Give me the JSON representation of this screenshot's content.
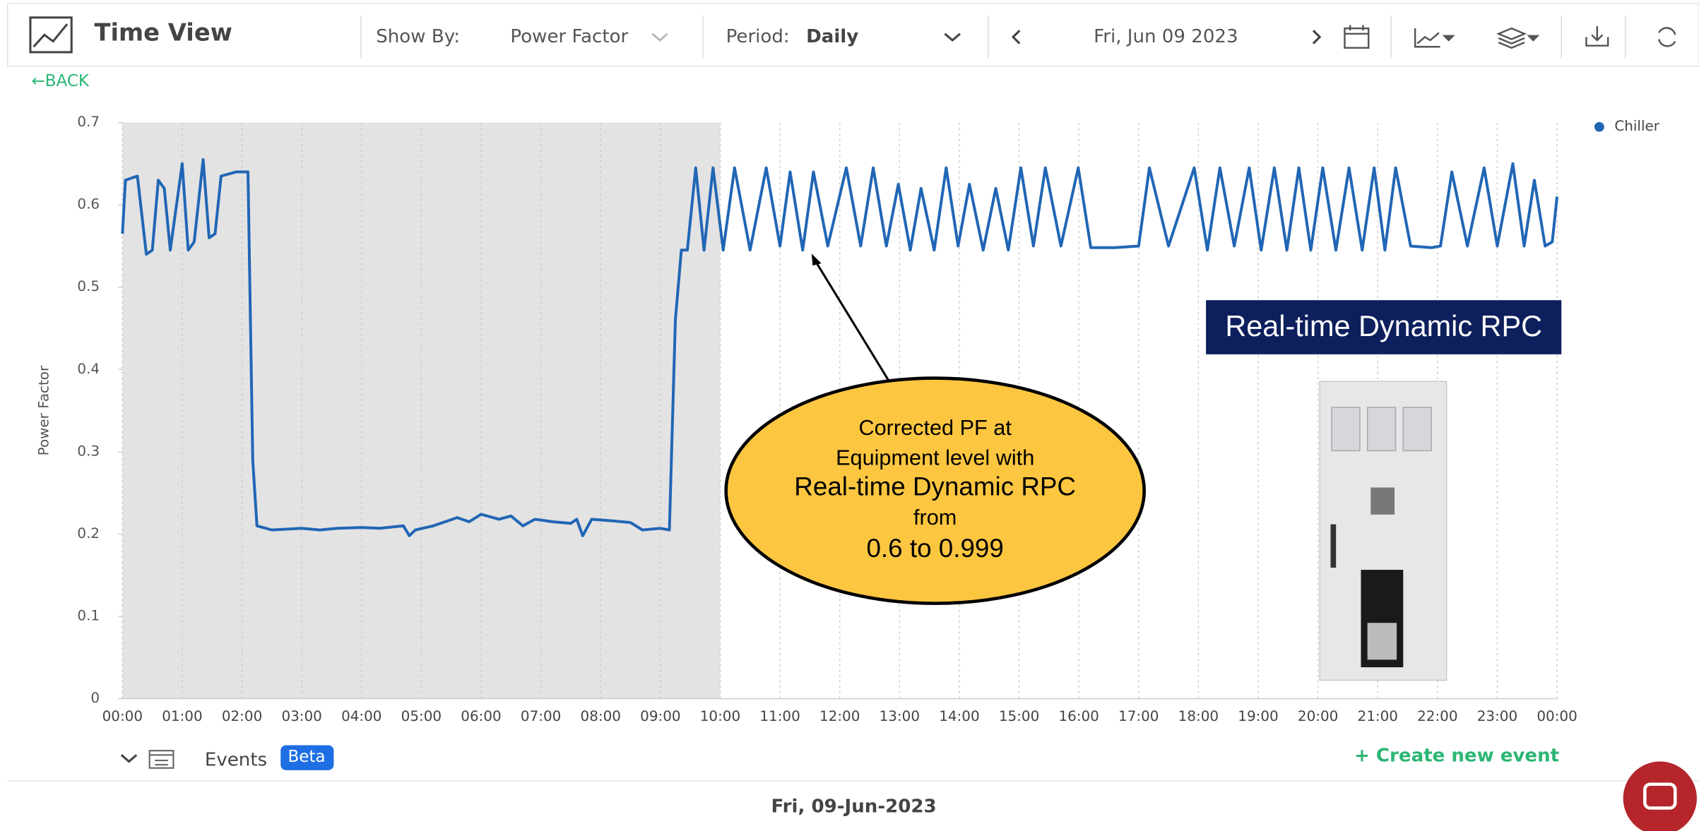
{
  "header": {
    "title": "Time View",
    "show_by_label": "Show By:",
    "show_by_value": "Power Factor",
    "period_label": "Period:",
    "period_value": "Daily",
    "date": "Fri, Jun 09 2023"
  },
  "back": "←BACK",
  "events": {
    "label": "Events",
    "badge": "Beta",
    "create": "+ Create new event"
  },
  "footer": {
    "date": "Fri, 09-Jun-2023"
  },
  "callout": {
    "lines": [
      "Corrected PF at",
      "Equipment level with",
      "Real-time Dynamic RPC",
      "from",
      "0.6 to 0.999"
    ]
  },
  "product_label": "Real-time Dynamic RPC",
  "chart_data": {
    "type": "line",
    "y_label": "Power Factor",
    "grid": true,
    "legend": "top-right",
    "highlight_xrange": [
      0,
      10
    ],
    "xlim": [
      0,
      24
    ],
    "ylim": [
      0,
      0.7
    ],
    "yticks": [
      0,
      0.1,
      0.2,
      0.3,
      0.4,
      0.5,
      0.6,
      0.7
    ],
    "xticks": [
      {
        "value": 0,
        "label": "00:00"
      },
      {
        "value": 1,
        "label": "01:00"
      },
      {
        "value": 2,
        "label": "02:00"
      },
      {
        "value": 3,
        "label": "03:00"
      },
      {
        "value": 4,
        "label": "04:00"
      },
      {
        "value": 5,
        "label": "05:00"
      },
      {
        "value": 6,
        "label": "06:00"
      },
      {
        "value": 7,
        "label": "07:00"
      },
      {
        "value": 8,
        "label": "08:00"
      },
      {
        "value": 9,
        "label": "09:00"
      },
      {
        "value": 10,
        "label": "10:00"
      },
      {
        "value": 11,
        "label": "11:00"
      },
      {
        "value": 12,
        "label": "12:00"
      },
      {
        "value": 13,
        "label": "13:00"
      },
      {
        "value": 14,
        "label": "14:00"
      },
      {
        "value": 15,
        "label": "15:00"
      },
      {
        "value": 16,
        "label": "16:00"
      },
      {
        "value": 17,
        "label": "17:00"
      },
      {
        "value": 18,
        "label": "18:00"
      },
      {
        "value": 19,
        "label": "19:00"
      },
      {
        "value": 20,
        "label": "20:00"
      },
      {
        "value": 21,
        "label": "21:00"
      },
      {
        "value": 22,
        "label": "22:00"
      },
      {
        "value": 23,
        "label": "23:00"
      },
      {
        "value": 24,
        "label": "00:00"
      }
    ],
    "x": [
      0,
      0.05,
      0.25,
      0.4,
      0.5,
      0.6,
      0.7,
      0.8,
      1.0,
      1.1,
      1.2,
      1.35,
      1.45,
      1.55,
      1.65,
      1.9,
      2.1,
      2.18,
      2.25,
      2.5,
      3.0,
      3.3,
      3.6,
      4.0,
      4.3,
      4.7,
      4.8,
      4.9,
      5.2,
      5.6,
      5.8,
      6.0,
      6.3,
      6.5,
      6.7,
      6.9,
      7.2,
      7.5,
      7.6,
      7.7,
      7.85,
      8.2,
      8.5,
      8.7,
      9.0,
      9.15,
      9.25,
      9.35,
      9.45,
      9.59,
      9.73,
      9.88,
      10.05,
      10.24,
      10.5,
      10.77,
      11.0,
      11.17,
      11.38,
      11.56,
      11.8,
      12.11,
      12.35,
      12.56,
      12.78,
      12.98,
      13.18,
      13.36,
      13.58,
      13.78,
      13.98,
      14.17,
      14.4,
      14.61,
      14.82,
      15.03,
      15.24,
      15.44,
      15.7,
      15.99,
      16.2,
      16.6,
      17.0,
      17.18,
      17.5,
      17.93,
      18.15,
      18.36,
      18.6,
      18.85,
      19.05,
      19.27,
      19.48,
      19.68,
      19.88,
      20.08,
      20.3,
      20.52,
      20.74,
      20.94,
      21.12,
      21.3,
      21.55,
      21.9,
      22.05,
      22.24,
      22.5,
      22.78,
      23.0,
      23.26,
      23.45,
      23.62,
      23.8,
      23.92,
      24
    ],
    "series": [
      {
        "name": "Chiller",
        "color": "#2166b5",
        "values": [
          0.565,
          0.63,
          0.635,
          0.54,
          0.545,
          0.63,
          0.62,
          0.545,
          0.65,
          0.545,
          0.555,
          0.655,
          0.56,
          0.565,
          0.635,
          0.64,
          0.64,
          0.29,
          0.21,
          0.205,
          0.207,
          0.205,
          0.207,
          0.208,
          0.207,
          0.21,
          0.198,
          0.205,
          0.21,
          0.22,
          0.215,
          0.224,
          0.218,
          0.222,
          0.21,
          0.218,
          0.215,
          0.213,
          0.218,
          0.198,
          0.218,
          0.216,
          0.214,
          0.205,
          0.207,
          0.205,
          0.46,
          0.545,
          0.545,
          0.645,
          0.545,
          0.645,
          0.545,
          0.645,
          0.545,
          0.645,
          0.55,
          0.64,
          0.545,
          0.64,
          0.55,
          0.645,
          0.55,
          0.645,
          0.55,
          0.625,
          0.545,
          0.62,
          0.545,
          0.645,
          0.55,
          0.625,
          0.545,
          0.62,
          0.545,
          0.645,
          0.55,
          0.645,
          0.55,
          0.645,
          0.548,
          0.548,
          0.55,
          0.645,
          0.55,
          0.645,
          0.545,
          0.645,
          0.55,
          0.645,
          0.545,
          0.645,
          0.545,
          0.645,
          0.545,
          0.645,
          0.545,
          0.645,
          0.545,
          0.645,
          0.545,
          0.645,
          0.55,
          0.548,
          0.55,
          0.64,
          0.55,
          0.645,
          0.55,
          0.65,
          0.55,
          0.63,
          0.55,
          0.555,
          0.61
        ]
      }
    ]
  }
}
